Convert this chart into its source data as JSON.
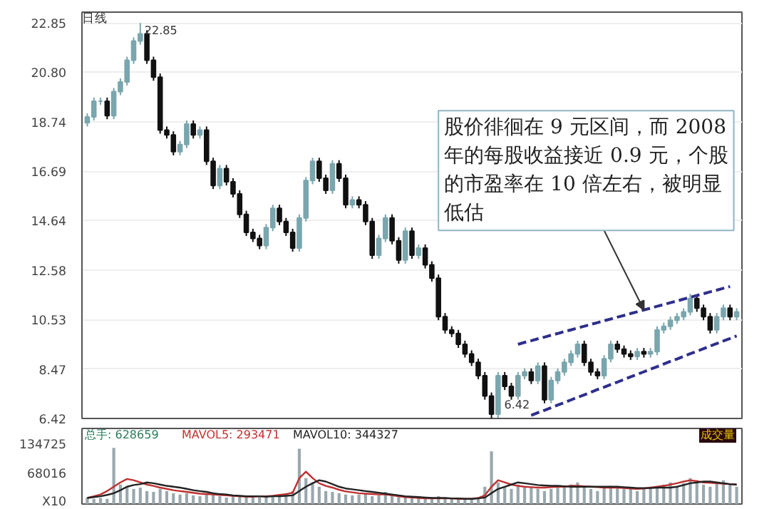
{
  "chart_data": [
    {
      "type": "candlestick",
      "annotations": [
        "日线",
        "22.85",
        "6.42",
        "股价徘徊在 9 元区间，而 2008年的每股收益接近 0.9 元，个股的市盈率在 10 倍左右，被明显低估"
      ],
      "categories": [
        null,
        null,
        null,
        null,
        null,
        null,
        null,
        null,
        null,
        null,
        null,
        null,
        null,
        null,
        null,
        null,
        null,
        null,
        null,
        null,
        null,
        null,
        null,
        null,
        null,
        null,
        null,
        null,
        null,
        null,
        null,
        null,
        null,
        null,
        null,
        null,
        null,
        null,
        null,
        null,
        null,
        null,
        null,
        null,
        null,
        null,
        null,
        null,
        null,
        null,
        null,
        null,
        null,
        null,
        null,
        null,
        null,
        null,
        null,
        null,
        null,
        null,
        null,
        null,
        null,
        null,
        null,
        null,
        null,
        null,
        null,
        null,
        null,
        null,
        null,
        null,
        null,
        null,
        null,
        null,
        null,
        null,
        null,
        null,
        null,
        null,
        null,
        null,
        null,
        null,
        null,
        null,
        null,
        null,
        null,
        null,
        null,
        null,
        null
      ],
      "ohlc": [
        [
          18.7,
          19.1,
          18.55,
          18.95
        ],
        [
          18.95,
          19.75,
          18.8,
          19.6
        ],
        [
          19.6,
          19.75,
          19.45,
          19.6
        ],
        [
          19.6,
          19.75,
          18.85,
          19.0
        ],
        [
          19.0,
          20.15,
          18.85,
          20.0
        ],
        [
          20.0,
          20.55,
          19.85,
          20.4
        ],
        [
          20.4,
          21.45,
          20.25,
          21.3
        ],
        [
          21.3,
          22.25,
          21.15,
          22.1
        ],
        [
          22.1,
          22.85,
          21.95,
          22.4
        ],
        [
          22.4,
          22.55,
          21.15,
          21.3
        ],
        [
          21.3,
          21.45,
          20.45,
          20.6
        ],
        [
          20.6,
          20.75,
          18.25,
          18.4
        ],
        [
          18.4,
          18.55,
          18.05,
          18.2
        ],
        [
          18.2,
          18.35,
          17.35,
          17.5
        ],
        [
          17.5,
          17.95,
          17.35,
          17.8
        ],
        [
          17.8,
          18.8,
          17.65,
          18.65
        ],
        [
          18.65,
          18.8,
          18.05,
          18.2
        ],
        [
          18.2,
          18.55,
          18.05,
          18.4
        ],
        [
          18.4,
          18.55,
          16.95,
          17.1
        ],
        [
          17.1,
          17.25,
          15.95,
          16.1
        ],
        [
          16.1,
          16.95,
          15.95,
          16.8
        ],
        [
          16.8,
          16.95,
          16.1,
          16.25
        ],
        [
          16.25,
          16.4,
          15.6,
          15.75
        ],
        [
          15.75,
          15.9,
          14.75,
          14.9
        ],
        [
          14.9,
          15.05,
          14.0,
          14.15
        ],
        [
          14.15,
          14.3,
          13.75,
          13.9
        ],
        [
          13.9,
          14.05,
          13.45,
          13.6
        ],
        [
          13.6,
          14.5,
          13.45,
          14.35
        ],
        [
          14.35,
          15.3,
          14.2,
          15.15
        ],
        [
          15.15,
          15.3,
          14.45,
          14.6
        ],
        [
          14.6,
          14.75,
          14.0,
          14.15
        ],
        [
          14.15,
          14.3,
          13.35,
          13.5
        ],
        [
          13.5,
          14.9,
          13.35,
          14.75
        ],
        [
          14.75,
          16.45,
          14.6,
          16.3
        ],
        [
          16.3,
          17.25,
          16.15,
          17.1
        ],
        [
          17.1,
          17.25,
          16.25,
          16.4
        ],
        [
          16.4,
          16.55,
          15.75,
          15.9
        ],
        [
          15.9,
          17.15,
          15.75,
          17.0
        ],
        [
          17.0,
          17.15,
          16.25,
          16.4
        ],
        [
          16.4,
          16.55,
          15.15,
          15.3
        ],
        [
          15.3,
          15.65,
          15.15,
          15.5
        ],
        [
          15.5,
          15.65,
          15.15,
          15.3
        ],
        [
          15.3,
          15.45,
          14.45,
          14.6
        ],
        [
          14.6,
          14.75,
          13.05,
          13.2
        ],
        [
          13.2,
          14.05,
          13.05,
          13.9
        ],
        [
          13.9,
          14.9,
          13.75,
          14.75
        ],
        [
          14.75,
          14.9,
          13.65,
          13.8
        ],
        [
          13.8,
          13.95,
          12.85,
          13.0
        ],
        [
          13.0,
          14.35,
          12.85,
          14.2
        ],
        [
          14.2,
          14.35,
          13.05,
          13.2
        ],
        [
          13.2,
          13.65,
          13.05,
          13.5
        ],
        [
          13.5,
          13.65,
          12.65,
          12.8
        ],
        [
          12.8,
          12.95,
          12.1,
          12.25
        ],
        [
          12.25,
          12.4,
          10.5,
          10.65
        ],
        [
          10.65,
          10.8,
          9.95,
          10.1
        ],
        [
          10.1,
          10.25,
          9.8,
          9.95
        ],
        [
          9.95,
          10.1,
          9.35,
          9.5
        ],
        [
          9.5,
          9.65,
          8.95,
          9.1
        ],
        [
          9.1,
          9.25,
          8.6,
          8.75
        ],
        [
          8.75,
          8.9,
          8.05,
          8.2
        ],
        [
          8.2,
          8.35,
          7.2,
          7.35
        ],
        [
          7.35,
          7.5,
          6.42,
          6.6
        ],
        [
          6.6,
          8.35,
          6.45,
          8.2
        ],
        [
          8.2,
          8.35,
          7.6,
          7.75
        ],
        [
          7.75,
          7.9,
          7.2,
          7.35
        ],
        [
          7.35,
          8.35,
          7.2,
          8.2
        ],
        [
          8.2,
          8.5,
          8.05,
          8.35
        ],
        [
          8.35,
          8.5,
          7.85,
          8.0
        ],
        [
          8.0,
          8.75,
          7.85,
          8.6
        ],
        [
          8.6,
          8.75,
          7.05,
          7.2
        ],
        [
          7.2,
          8.15,
          7.05,
          8.0
        ],
        [
          8.0,
          8.5,
          7.85,
          8.35
        ],
        [
          8.35,
          8.9,
          8.2,
          8.75
        ],
        [
          8.75,
          9.25,
          8.6,
          9.1
        ],
        [
          9.1,
          9.65,
          8.95,
          9.5
        ],
        [
          9.5,
          9.65,
          8.6,
          8.75
        ],
        [
          8.75,
          8.9,
          8.2,
          8.35
        ],
        [
          8.35,
          8.5,
          8.05,
          8.2
        ],
        [
          8.2,
          9.05,
          8.05,
          8.9
        ],
        [
          8.9,
          9.65,
          8.75,
          9.5
        ],
        [
          9.5,
          9.65,
          9.15,
          9.3
        ],
        [
          9.3,
          9.45,
          8.95,
          9.1
        ],
        [
          9.1,
          9.25,
          8.85,
          9.0
        ],
        [
          9.0,
          9.35,
          8.85,
          9.2
        ],
        [
          9.2,
          9.35,
          8.95,
          9.1
        ],
        [
          9.1,
          9.35,
          8.95,
          9.2
        ],
        [
          9.2,
          10.25,
          9.05,
          10.1
        ],
        [
          10.1,
          10.4,
          9.95,
          10.25
        ],
        [
          10.25,
          10.65,
          10.1,
          10.5
        ],
        [
          10.5,
          10.8,
          10.35,
          10.65
        ],
        [
          10.65,
          11.0,
          10.5,
          10.85
        ],
        [
          10.85,
          11.6,
          10.7,
          11.4
        ],
        [
          11.4,
          11.55,
          10.85,
          11.0
        ],
        [
          11.0,
          11.15,
          10.5,
          10.65
        ],
        [
          10.65,
          10.8,
          9.95,
          10.1
        ],
        [
          10.1,
          10.8,
          9.95,
          10.65
        ],
        [
          10.65,
          11.15,
          10.5,
          11.0
        ],
        [
          11.0,
          11.15,
          10.5,
          10.65
        ],
        [
          10.65,
          11.0,
          10.5,
          10.85
        ]
      ],
      "colors": [
        "#7aa6ae",
        "#7aa6ae",
        "#7aa6ae",
        "#111111",
        "#7aa6ae",
        "#7aa6ae",
        "#7aa6ae",
        "#7aa6ae",
        "#7aa6ae",
        "#111111",
        "#111111",
        "#111111",
        "#111111",
        "#111111",
        "#7aa6ae",
        "#7aa6ae",
        "#111111",
        "#7aa6ae",
        "#111111",
        "#111111",
        "#7aa6ae",
        "#111111",
        "#111111",
        "#111111",
        "#111111",
        "#111111",
        "#111111",
        "#7aa6ae",
        "#7aa6ae",
        "#111111",
        "#111111",
        "#111111",
        "#7aa6ae",
        "#7aa6ae",
        "#7aa6ae",
        "#111111",
        "#111111",
        "#7aa6ae",
        "#111111",
        "#111111",
        "#7aa6ae",
        "#111111",
        "#111111",
        "#111111",
        "#7aa6ae",
        "#7aa6ae",
        "#111111",
        "#111111",
        "#7aa6ae",
        "#111111",
        "#7aa6ae",
        "#111111",
        "#111111",
        "#111111",
        "#111111",
        "#111111",
        "#111111",
        "#111111",
        "#111111",
        "#111111",
        "#111111",
        "#111111",
        "#7aa6ae",
        "#111111",
        "#111111",
        "#7aa6ae",
        "#7aa6ae",
        "#111111",
        "#7aa6ae",
        "#111111",
        "#7aa6ae",
        "#7aa6ae",
        "#7aa6ae",
        "#7aa6ae",
        "#7aa6ae",
        "#111111",
        "#111111",
        "#111111",
        "#7aa6ae",
        "#7aa6ae",
        "#111111",
        "#111111",
        "#111111",
        "#7aa6ae",
        "#111111",
        "#7aa6ae",
        "#7aa6ae",
        "#7aa6ae",
        "#7aa6ae",
        "#7aa6ae",
        "#7aa6ae",
        "#7aa6ae",
        "#111111",
        "#111111",
        "#111111",
        "#7aa6ae",
        "#7aa6ae",
        "#111111",
        "#7aa6ae"
      ],
      "series": [
        {
          "type": "line",
          "color": "#2e2e8c",
          "line_style": "dashed",
          "values": [
            null,
            null,
            null,
            null,
            null,
            null,
            null,
            null,
            null,
            null,
            null,
            null,
            null,
            null,
            null,
            null,
            null,
            null,
            null,
            null,
            null,
            null,
            null,
            null,
            null,
            null,
            null,
            null,
            null,
            null,
            null,
            null,
            null,
            null,
            null,
            null,
            null,
            null,
            null,
            null,
            null,
            null,
            null,
            null,
            null,
            null,
            null,
            null,
            null,
            null,
            null,
            null,
            null,
            null,
            null,
            null,
            null,
            null,
            null,
            null,
            null,
            null,
            null,
            null,
            null,
            9.5,
            9.58,
            9.65,
            9.73,
            9.8,
            9.88,
            9.95,
            10.03,
            10.1,
            10.18,
            10.25,
            10.33,
            10.4,
            10.48,
            10.55,
            10.63,
            10.7,
            10.78,
            10.85,
            10.93,
            11.0,
            11.08,
            11.15,
            11.23,
            11.3,
            11.38,
            11.45,
            11.53,
            11.6,
            11.68,
            11.75,
            11.83,
            11.9,
            null
          ]
        },
        {
          "type": "line",
          "color": "#2e2e8c",
          "line_style": "dashed",
          "values": [
            null,
            null,
            null,
            null,
            null,
            null,
            null,
            null,
            null,
            null,
            null,
            null,
            null,
            null,
            null,
            null,
            null,
            null,
            null,
            null,
            null,
            null,
            null,
            null,
            null,
            null,
            null,
            null,
            null,
            null,
            null,
            null,
            null,
            null,
            null,
            null,
            null,
            null,
            null,
            null,
            null,
            null,
            null,
            null,
            null,
            null,
            null,
            null,
            null,
            null,
            null,
            null,
            null,
            null,
            null,
            null,
            null,
            null,
            null,
            null,
            null,
            null,
            null,
            null,
            null,
            null,
            null,
            6.55,
            6.66,
            6.76,
            6.87,
            6.98,
            7.08,
            7.19,
            7.3,
            7.4,
            7.51,
            7.62,
            7.72,
            7.83,
            7.93,
            8.04,
            8.15,
            8.25,
            8.36,
            8.47,
            8.57,
            8.68,
            8.79,
            8.89,
            9.0,
            9.11,
            9.21,
            9.32,
            9.43,
            9.53,
            9.64,
            9.74,
            9.85
          ]
        }
      ],
      "ylim": [
        6.42,
        23.3
      ],
      "yticks": [
        6.42,
        8.47,
        10.53,
        12.58,
        14.64,
        16.69,
        18.74,
        {
          "value": 20.8,
          "label": "20.80"
        },
        22.85
      ],
      "tick_labels": "y",
      "grid": "y"
    },
    {
      "type": "bar",
      "annotations": [
        "总手: 628659",
        "成交量"
      ],
      "categories": [
        null,
        null,
        null,
        null,
        null,
        null,
        null,
        null,
        null,
        null,
        null,
        null,
        null,
        null,
        null,
        null,
        null,
        null,
        null,
        null,
        null,
        null,
        null,
        null,
        null,
        null,
        null,
        null,
        null,
        null,
        null,
        null,
        null,
        null,
        null,
        null,
        null,
        null,
        null,
        null,
        null,
        null,
        null,
        null,
        null,
        null,
        null,
        null,
        null,
        null,
        null,
        null,
        null,
        null,
        null,
        null,
        null,
        null,
        null,
        null,
        null,
        null,
        null,
        null,
        null,
        null,
        null,
        null,
        null,
        null,
        null,
        null,
        null,
        null,
        null,
        null,
        null,
        null,
        null,
        null,
        null,
        null,
        null,
        null,
        null,
        null,
        null,
        null,
        null,
        null,
        null,
        null,
        null,
        null,
        null,
        null,
        null,
        null,
        null
      ],
      "values": [
        15000,
        12000,
        14000,
        12000,
        130000,
        45000,
        40000,
        35000,
        38000,
        30000,
        28000,
        35000,
        30000,
        25000,
        22000,
        25000,
        20000,
        18000,
        22000,
        25000,
        18000,
        15000,
        20000,
        18000,
        15000,
        15000,
        16000,
        18000,
        20000,
        18000,
        25000,
        30000,
        128000,
        60000,
        50000,
        40000,
        30000,
        28000,
        25000,
        22000,
        20000,
        22000,
        25000,
        18000,
        20000,
        28000,
        20000,
        18000,
        15000,
        14000,
        12000,
        14000,
        15000,
        18000,
        14000,
        12000,
        12000,
        10000,
        12000,
        15000,
        40000,
        122000,
        50000,
        40000,
        35000,
        45000,
        38000,
        40000,
        35000,
        30000,
        35000,
        40000,
        38000,
        45000,
        50000,
        40000,
        35000,
        30000,
        38000,
        42000,
        40000,
        35000,
        38000,
        30000,
        35000,
        40000,
        38000,
        45000,
        50000,
        40000,
        48000,
        60000,
        55000,
        45000,
        40000,
        48000,
        55000,
        45000,
        40000
      ],
      "color": "#9aa8ad",
      "series": [
        {
          "type": "line",
          "name": "MAVOL5: 293471",
          "color": "#c03030",
          "values": [
            14000,
            18000,
            22000,
            30000,
            40000,
            50000,
            58000,
            55000,
            50000,
            45000,
            42000,
            38000,
            35000,
            32000,
            30000,
            28000,
            26000,
            24000,
            23000,
            22000,
            21000,
            20000,
            19000,
            18000,
            17000,
            17000,
            18000,
            18000,
            19000,
            21000,
            23000,
            26000,
            60000,
            75000,
            60000,
            48000,
            42000,
            38000,
            33000,
            29000,
            27000,
            25000,
            24000,
            23000,
            22000,
            22000,
            20000,
            18000,
            16000,
            15000,
            14000,
            13000,
            13000,
            13000,
            13000,
            13000,
            12000,
            12000,
            12000,
            14000,
            20000,
            40000,
            55000,
            50000,
            45000,
            42000,
            40000,
            39000,
            38000,
            38000,
            39000,
            40000,
            40000,
            42000,
            42000,
            41000,
            40000,
            39000,
            38000,
            38000,
            38000,
            37000,
            36000,
            35000,
            36000,
            38000,
            40000,
            42000,
            45000,
            48000,
            52000,
            55000,
            53000,
            50000,
            49000,
            48000,
            47000,
            46000,
            45000
          ]
        },
        {
          "type": "line",
          "name": "MAVOL10: 344327",
          "color": "#222222",
          "values": [
            14000,
            16000,
            18000,
            21000,
            25000,
            32000,
            40000,
            44000,
            46000,
            50000,
            48000,
            45000,
            42000,
            40000,
            38000,
            35000,
            32000,
            30000,
            28000,
            25000,
            23000,
            22000,
            20000,
            19000,
            18000,
            18000,
            18000,
            17000,
            18000,
            18000,
            19000,
            20000,
            30000,
            40000,
            48000,
            55000,
            52000,
            46000,
            40000,
            36000,
            34000,
            32000,
            30000,
            28000,
            26000,
            24000,
            22000,
            20000,
            18000,
            17000,
            16000,
            15000,
            14000,
            14000,
            14000,
            13000,
            13000,
            12000,
            12000,
            13000,
            15000,
            25000,
            35000,
            40000,
            45000,
            50000,
            48000,
            46000,
            44000,
            43000,
            42000,
            42000,
            41000,
            40000,
            40000,
            40000,
            40000,
            40000,
            40000,
            40000,
            40000,
            39000,
            38000,
            37000,
            37000,
            37000,
            38000,
            38000,
            38000,
            40000,
            44000,
            48000,
            50000,
            52000,
            52000,
            50000,
            48000,
            46000,
            45000
          ]
        }
      ],
      "ylim": [
        0,
        175000
      ],
      "yticks": [
        {
          "value": 0,
          "label": "X10"
        },
        68016,
        134725
      ],
      "tick_labels": "y"
    }
  ]
}
